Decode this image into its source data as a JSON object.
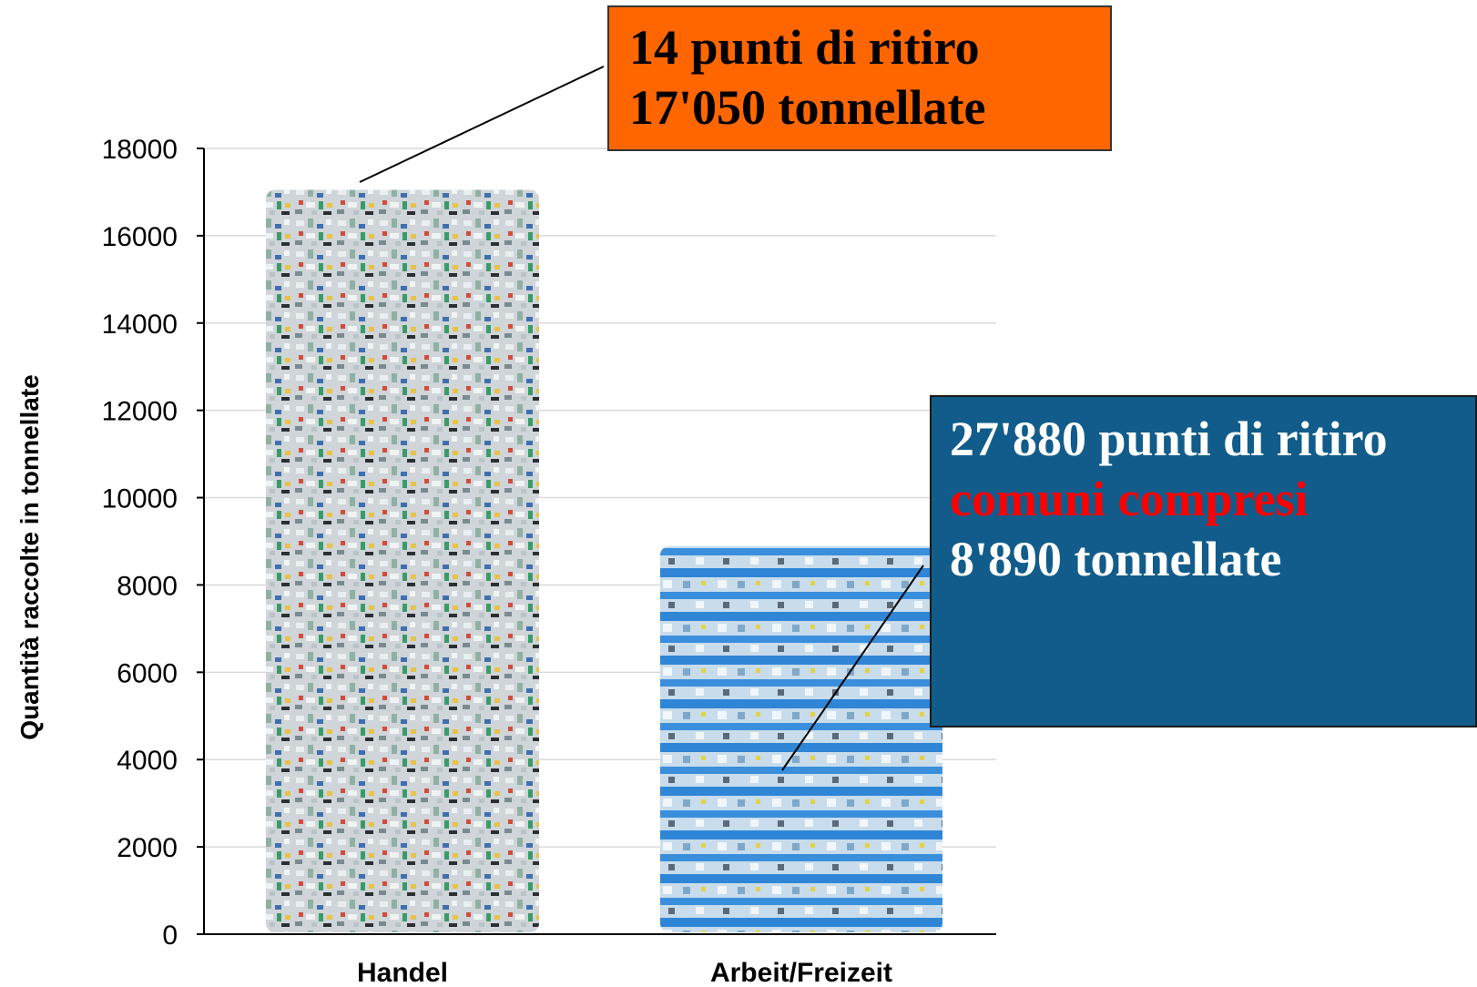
{
  "chart_data": {
    "type": "bar",
    "title": "",
    "xlabel": "",
    "ylabel": "Quantità raccolte in tonnellate",
    "ylim": [
      0,
      18000
    ],
    "yticks": [
      0,
      2000,
      4000,
      6000,
      8000,
      10000,
      12000,
      14000,
      16000,
      18000
    ],
    "grid": true,
    "categories": [
      "Handel",
      "Arbeit/Freizeit"
    ],
    "values": [
      17050,
      8890
    ],
    "annotations": [
      {
        "category": "Handel",
        "lines": [
          "14 punti di ritiro",
          "17'050 tonnellate"
        ],
        "color": "#ff6600"
      },
      {
        "category": "Arbeit/Freizeit",
        "lines": [
          "27'880 punti di ritiro",
          "comuni compresi",
          "8'890 tonnellate"
        ],
        "color": "#115c8a",
        "highlight_color": "#ff0000"
      }
    ],
    "bar_fill": {
      "Handel": "bale-pattern",
      "Arbeit/Freizeit": "bag-pattern"
    }
  },
  "colors": {
    "bale": "#c9cfd2",
    "bag": "#2f86d6",
    "handel_box": "#ff6600",
    "arbeit_box": "#115c8a",
    "highlight": "#ff0000",
    "grid": "#d9d9d9"
  }
}
